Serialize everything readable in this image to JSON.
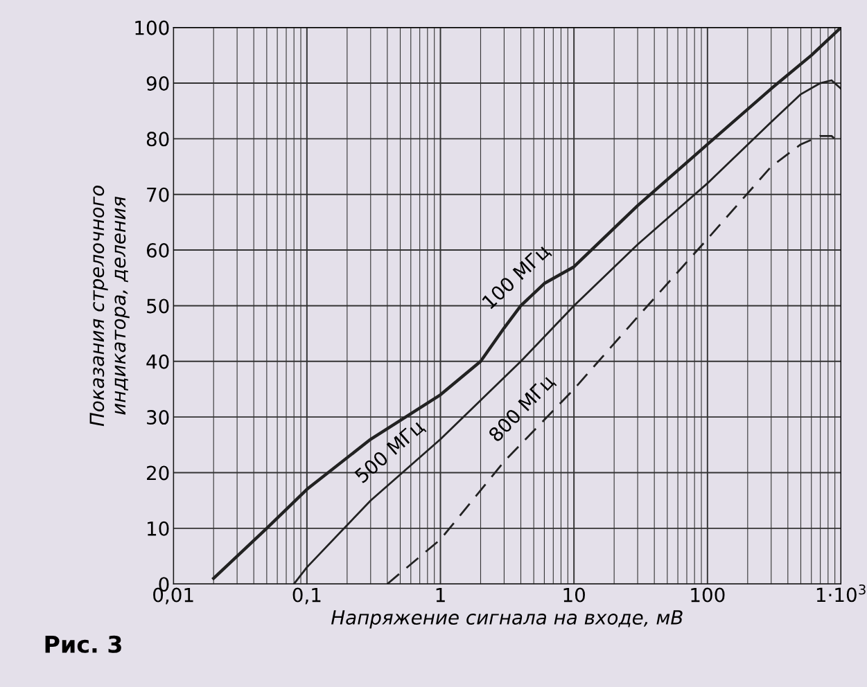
{
  "chart_data": {
    "type": "line",
    "xlabel": "Напряжение сигнала на входе, мВ",
    "ylabel": "Показания стрелочного\nиндикатора, деления",
    "log": "x",
    "grid": true,
    "marker": "none",
    "xlim": [
      0.01,
      1000
    ],
    "xticks": [
      {
        "value": 0.01,
        "label": "0,01"
      },
      {
        "value": 0.1,
        "label": "0,1"
      },
      1,
      10,
      100,
      {
        "value": 1000,
        "label": "1·10$^{3}$"
      }
    ],
    "ylim": [
      0,
      100
    ],
    "yticks": [
      0,
      10,
      20,
      30,
      40,
      50,
      60,
      70,
      80,
      90,
      100
    ],
    "series": [
      {
        "name": "100 МГц",
        "color": "#222222",
        "line_style": "solid",
        "x": [
          0.02,
          0.05,
          0.1,
          0.3,
          1,
          2,
          3,
          4,
          6,
          10,
          30,
          100,
          300,
          600,
          1000
        ],
        "values": [
          1,
          10,
          17,
          26,
          34,
          40,
          46,
          50,
          54,
          57,
          68,
          79,
          89,
          95,
          100
        ]
      },
      {
        "name": "500 МГц",
        "color": "#222222",
        "line_style": "solid",
        "x": [
          0.08,
          0.1,
          0.3,
          1,
          2,
          4,
          10,
          30,
          100,
          300,
          500,
          700,
          850,
          1000
        ],
        "values": [
          0,
          3,
          15,
          26,
          33,
          40,
          50,
          61,
          72,
          83,
          88,
          90,
          90.5,
          89
        ]
      },
      {
        "name": "800 МГц",
        "color": "#222222",
        "line_style": "dashed",
        "x": [
          0.4,
          1,
          3,
          10,
          30,
          100,
          300,
          500,
          700,
          850,
          1000
        ],
        "values": [
          0,
          8,
          22,
          35,
          48,
          62,
          75,
          79,
          80.5,
          80.5,
          79
        ]
      }
    ],
    "annotations": [
      "Рис. 3"
    ]
  }
}
